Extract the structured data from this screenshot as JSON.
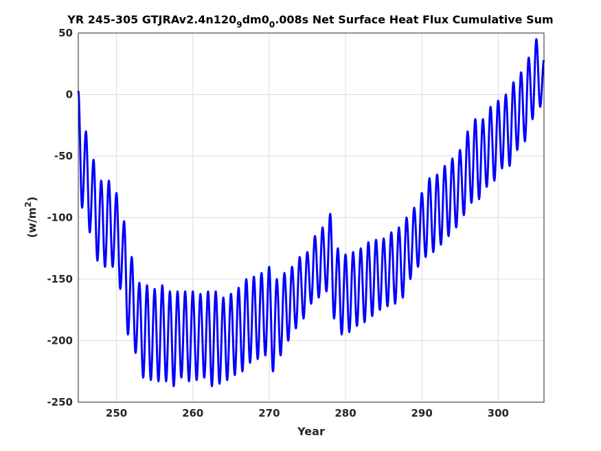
{
  "chart_data": {
    "type": "line",
    "title": {
      "prefix": "YR 245-305 GTJRAv2.4n120",
      "sub1": "9",
      "mid": "dm0",
      "sub2": "0",
      "suffix": ".008s Net Surface Heat Flux  Cumulative Sum"
    },
    "xlabel": "Year",
    "ylabel": {
      "main": "(w/m",
      "sup": "2",
      "close": ")"
    },
    "xlim": [
      245,
      306
    ],
    "ylim": [
      -250,
      50
    ],
    "xticks": [
      250,
      260,
      270,
      280,
      290,
      300
    ],
    "yticks": [
      -250,
      -200,
      -150,
      -100,
      -50,
      0,
      50
    ],
    "grid": true,
    "line_color": "#0000ff",
    "series": [
      {
        "cycles_per_year": 1,
        "peaks": [
          [
            245.0,
            3
          ],
          [
            246.0,
            -30
          ],
          [
            247.0,
            -53
          ],
          [
            248.0,
            -70
          ],
          [
            249.0,
            -70
          ],
          [
            250.0,
            -80
          ],
          [
            251.0,
            -103
          ],
          [
            252.0,
            -132
          ],
          [
            253.0,
            -153
          ],
          [
            254.0,
            -155
          ],
          [
            255.0,
            -158
          ],
          [
            256.0,
            -155
          ],
          [
            257.0,
            -160
          ],
          [
            258.0,
            -160
          ],
          [
            259.0,
            -160
          ],
          [
            260.0,
            -160
          ],
          [
            261.0,
            -162
          ],
          [
            262.0,
            -160
          ],
          [
            263.0,
            -160
          ],
          [
            264.0,
            -165
          ],
          [
            265.0,
            -162
          ],
          [
            266.0,
            -157
          ],
          [
            267.0,
            -150
          ],
          [
            268.0,
            -148
          ],
          [
            269.0,
            -145
          ],
          [
            270.0,
            -140
          ],
          [
            271.0,
            -150
          ],
          [
            272.0,
            -145
          ],
          [
            273.0,
            -140
          ],
          [
            274.0,
            -132
          ],
          [
            275.0,
            -128
          ],
          [
            276.0,
            -115
          ],
          [
            277.0,
            -108
          ],
          [
            278.0,
            -97
          ],
          [
            279.0,
            -125
          ],
          [
            280.0,
            -130
          ],
          [
            281.0,
            -128
          ],
          [
            282.0,
            -125
          ],
          [
            283.0,
            -120
          ],
          [
            284.0,
            -118
          ],
          [
            285.0,
            -117
          ],
          [
            286.0,
            -112
          ],
          [
            287.0,
            -108
          ],
          [
            288.0,
            -100
          ],
          [
            289.0,
            -92
          ],
          [
            290.0,
            -80
          ],
          [
            291.0,
            -68
          ],
          [
            292.0,
            -65
          ],
          [
            293.0,
            -58
          ],
          [
            294.0,
            -52
          ],
          [
            295.0,
            -45
          ],
          [
            296.0,
            -30
          ],
          [
            297.0,
            -20
          ],
          [
            298.0,
            -20
          ],
          [
            299.0,
            -10
          ],
          [
            300.0,
            -5
          ],
          [
            301.0,
            0
          ],
          [
            302.0,
            10
          ],
          [
            303.0,
            18
          ],
          [
            304.0,
            30
          ],
          [
            305.0,
            45
          ],
          [
            306.0,
            28
          ]
        ],
        "troughs": [
          [
            245.5,
            -92
          ],
          [
            246.5,
            -112
          ],
          [
            247.5,
            -135
          ],
          [
            248.5,
            -140
          ],
          [
            249.5,
            -140
          ],
          [
            250.5,
            -158
          ],
          [
            251.5,
            -195
          ],
          [
            252.5,
            -210
          ],
          [
            253.5,
            -230
          ],
          [
            254.5,
            -232
          ],
          [
            255.5,
            -233
          ],
          [
            256.5,
            -233
          ],
          [
            257.5,
            -237
          ],
          [
            258.5,
            -230
          ],
          [
            259.5,
            -233
          ],
          [
            260.5,
            -232
          ],
          [
            261.5,
            -230
          ],
          [
            262.5,
            -237
          ],
          [
            263.5,
            -235
          ],
          [
            264.5,
            -232
          ],
          [
            265.5,
            -228
          ],
          [
            266.5,
            -225
          ],
          [
            267.5,
            -218
          ],
          [
            268.5,
            -215
          ],
          [
            269.5,
            -212
          ],
          [
            270.5,
            -225
          ],
          [
            271.5,
            -212
          ],
          [
            272.5,
            -200
          ],
          [
            273.5,
            -190
          ],
          [
            274.5,
            -182
          ],
          [
            275.5,
            -170
          ],
          [
            276.5,
            -165
          ],
          [
            277.5,
            -160
          ],
          [
            278.5,
            -182
          ],
          [
            279.5,
            -195
          ],
          [
            280.5,
            -193
          ],
          [
            281.5,
            -188
          ],
          [
            282.5,
            -185
          ],
          [
            283.5,
            -180
          ],
          [
            284.5,
            -175
          ],
          [
            285.5,
            -172
          ],
          [
            286.5,
            -170
          ],
          [
            287.5,
            -165
          ],
          [
            288.5,
            -150
          ],
          [
            289.5,
            -140
          ],
          [
            290.5,
            -132
          ],
          [
            291.5,
            -128
          ],
          [
            292.5,
            -122
          ],
          [
            293.5,
            -115
          ],
          [
            294.5,
            -108
          ],
          [
            295.5,
            -98
          ],
          [
            296.5,
            -88
          ],
          [
            297.5,
            -85
          ],
          [
            298.5,
            -75
          ],
          [
            299.5,
            -70
          ],
          [
            300.5,
            -60
          ],
          [
            301.5,
            -58
          ],
          [
            302.5,
            -45
          ],
          [
            303.5,
            -38
          ],
          [
            304.5,
            -20
          ],
          [
            305.5,
            -10
          ]
        ]
      }
    ]
  }
}
